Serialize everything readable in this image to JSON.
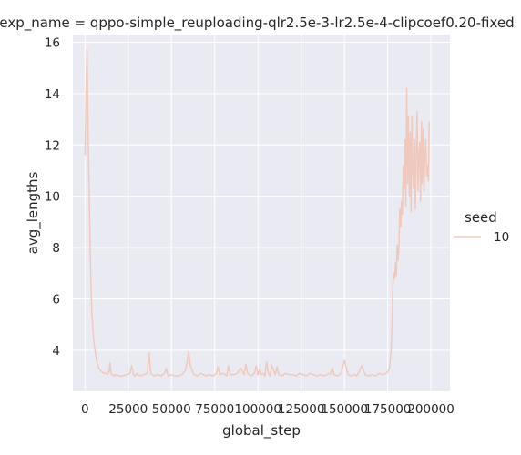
{
  "chart_data": {
    "type": "line",
    "title": "exp_name = qppo-simple_reuploading-qlr2.5e-3-lr2.5e-4-clipcoef0.20-fixed",
    "xlabel": "global_step",
    "ylabel": "avg_lengths",
    "xlim": [
      -7000,
      211000
    ],
    "ylim": [
      2.4,
      16.3
    ],
    "xticks": [
      0,
      25000,
      50000,
      75000,
      100000,
      125000,
      150000,
      175000,
      200000
    ],
    "xtick_labels": [
      "0",
      "25000",
      "50000",
      "75000",
      "100000",
      "125000",
      "150000",
      "175000",
      "200000"
    ],
    "yticks": [
      4,
      6,
      8,
      10,
      12,
      14,
      16
    ],
    "ytick_labels": [
      "4",
      "6",
      "8",
      "10",
      "12",
      "14",
      "16"
    ],
    "grid": true,
    "background": "#eaeaf2",
    "line_color": "#f0c9be",
    "legend": {
      "title": "seed",
      "placement": "right",
      "entries": [
        "10"
      ]
    },
    "series": [
      {
        "name": "10",
        "x": [
          0,
          600,
          1200,
          1800,
          2400,
          3000,
          3500,
          4000,
          4500,
          5000,
          6000,
          7000,
          8000,
          9000,
          10000,
          11000,
          12000,
          13000,
          14000,
          14500,
          15000,
          15500,
          16000,
          17000,
          18000,
          20000,
          22000,
          24000,
          26000,
          27000,
          28000,
          29000,
          30000,
          32000,
          34000,
          36000,
          37000,
          38000,
          39000,
          40000,
          42000,
          44000,
          46000,
          47000,
          48000,
          50000,
          52000,
          54000,
          56000,
          58000,
          59000,
          60000,
          61000,
          62000,
          63000,
          65000,
          67000,
          70000,
          72000,
          74000,
          76000,
          77000,
          78000,
          80000,
          82000,
          83000,
          84000,
          86000,
          88000,
          90000,
          92000,
          93000,
          94000,
          96000,
          98000,
          99000,
          100000,
          101000,
          102000,
          103000,
          104000,
          105000,
          106000,
          107000,
          108000,
          110000,
          111000,
          112000,
          114000,
          116000,
          118000,
          120000,
          122000,
          124000,
          126000,
          128000,
          130000,
          132000,
          134000,
          136000,
          138000,
          140000,
          142000,
          143000,
          144000,
          146000,
          148000,
          150000,
          152000,
          154000,
          156000,
          157000,
          158000,
          160000,
          162000,
          164000,
          166000,
          168000,
          170000,
          172000,
          174000,
          175000,
          176000,
          177000,
          177500,
          178000,
          178500,
          179000,
          179500,
          180000,
          180500,
          181000,
          181500,
          182000,
          182500,
          183000,
          183500,
          184000,
          184500,
          185000,
          185500,
          186000,
          186500,
          187000,
          187500,
          188000,
          188500,
          189000,
          189500,
          190000,
          190500,
          191000,
          191500,
          192000,
          192500,
          193000,
          193500,
          194000,
          194500,
          195000,
          195500,
          196000,
          196500,
          197000,
          197500,
          198000,
          198500,
          199000
        ],
        "y": [
          11.6,
          14.0,
          15.7,
          12.5,
          10.2,
          8.0,
          6.5,
          5.4,
          5.0,
          4.4,
          3.9,
          3.5,
          3.3,
          3.2,
          3.15,
          3.1,
          3.1,
          3.05,
          3.2,
          3.5,
          3.1,
          3.05,
          3.05,
          3.0,
          3.05,
          3.0,
          3.0,
          3.05,
          3.1,
          3.4,
          3.05,
          3.0,
          3.1,
          3.0,
          3.05,
          3.1,
          3.9,
          3.1,
          3.05,
          3.0,
          3.05,
          3.0,
          3.1,
          3.3,
          3.0,
          3.05,
          3.0,
          3.0,
          3.05,
          3.2,
          3.5,
          3.95,
          3.4,
          3.2,
          3.05,
          3.0,
          3.1,
          3.0,
          3.05,
          3.0,
          3.1,
          3.35,
          3.05,
          3.1,
          3.0,
          3.4,
          3.05,
          3.05,
          3.1,
          3.3,
          3.05,
          3.45,
          3.1,
          3.0,
          3.1,
          3.4,
          3.05,
          3.25,
          3.05,
          3.1,
          3.0,
          3.55,
          3.1,
          3.0,
          3.4,
          3.05,
          3.35,
          3.05,
          3.0,
          3.1,
          3.05,
          3.05,
          3.0,
          3.1,
          3.05,
          3.0,
          3.1,
          3.05,
          3.0,
          3.05,
          3.0,
          3.05,
          3.1,
          3.3,
          3.05,
          3.0,
          3.1,
          3.6,
          3.05,
          3.0,
          3.05,
          3.0,
          3.1,
          3.4,
          3.05,
          3.0,
          3.05,
          3.0,
          3.1,
          3.05,
          3.1,
          3.15,
          3.3,
          4.0,
          5.0,
          6.5,
          7.0,
          6.8,
          7.4,
          6.9,
          8.1,
          7.5,
          8.0,
          9.5,
          8.8,
          9.8,
          9.3,
          11.2,
          10.3,
          12.2,
          9.6,
          14.2,
          10.5,
          13.1,
          10.0,
          12.5,
          9.4,
          13.1,
          11.0,
          10.3,
          12.2,
          9.5,
          11.8,
          13.3,
          10.2,
          11.5,
          12.1,
          9.8,
          12.9,
          10.5,
          12.6,
          10.2,
          11.7,
          12.2,
          10.8,
          11.2,
          10.6,
          12.9
        ]
      }
    ]
  }
}
